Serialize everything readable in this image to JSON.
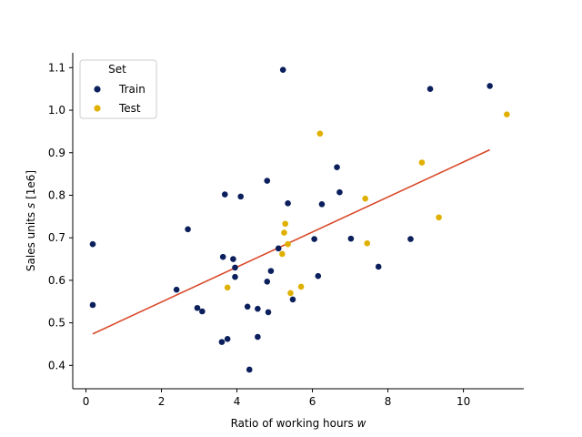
{
  "chart_data": {
    "type": "scatter",
    "xlabel": "Ratio of working hours w",
    "xlabel_parts": {
      "text": "Ratio of working hours ",
      "var": "w"
    },
    "ylabel": "Sales units s [1e6]",
    "ylabel_parts": {
      "pre": "Sales units ",
      "var": "s",
      "post": " [1e6]"
    },
    "xlim": [
      -0.35,
      11.6
    ],
    "ylim": [
      0.345,
      1.135
    ],
    "xticks": [
      0,
      2,
      4,
      6,
      8,
      10
    ],
    "xtick_labels": [
      "0",
      "2",
      "4",
      "6",
      "8",
      "10"
    ],
    "yticks": [
      0.4,
      0.5,
      0.6,
      0.7,
      0.8,
      0.9,
      1.0,
      1.1
    ],
    "ytick_labels": [
      "0.4",
      "0.5",
      "0.6",
      "0.7",
      "0.8",
      "0.9",
      "1.0",
      "1.1"
    ],
    "grid": false,
    "legend": {
      "title": "Set",
      "placement": "top-left"
    },
    "series": [
      {
        "name": "Train",
        "color": "#0b1f5c",
        "points": [
          [
            0.18,
            0.685
          ],
          [
            0.18,
            0.542
          ],
          [
            2.4,
            0.578
          ],
          [
            2.7,
            0.72
          ],
          [
            2.95,
            0.535
          ],
          [
            3.08,
            0.527
          ],
          [
            3.6,
            0.455
          ],
          [
            3.63,
            0.655
          ],
          [
            3.68,
            0.802
          ],
          [
            3.75,
            0.462
          ],
          [
            3.9,
            0.65
          ],
          [
            3.95,
            0.608
          ],
          [
            3.95,
            0.63
          ],
          [
            4.1,
            0.797
          ],
          [
            4.28,
            0.538
          ],
          [
            4.33,
            0.39
          ],
          [
            4.55,
            0.533
          ],
          [
            4.55,
            0.467
          ],
          [
            4.8,
            0.834
          ],
          [
            4.8,
            0.597
          ],
          [
            4.83,
            0.525
          ],
          [
            4.9,
            0.622
          ],
          [
            5.1,
            0.675
          ],
          [
            5.22,
            1.095
          ],
          [
            5.35,
            0.781
          ],
          [
            5.48,
            0.555
          ],
          [
            6.05,
            0.697
          ],
          [
            6.15,
            0.61
          ],
          [
            6.25,
            0.779
          ],
          [
            6.65,
            0.866
          ],
          [
            6.72,
            0.807
          ],
          [
            7.02,
            0.698
          ],
          [
            7.75,
            0.632
          ],
          [
            8.6,
            0.697
          ],
          [
            9.12,
            1.05
          ],
          [
            10.7,
            1.057
          ]
        ]
      },
      {
        "name": "Test",
        "color": "#e0b000",
        "points": [
          [
            3.75,
            0.583
          ],
          [
            5.2,
            0.662
          ],
          [
            5.25,
            0.712
          ],
          [
            5.28,
            0.733
          ],
          [
            5.35,
            0.685
          ],
          [
            5.42,
            0.57
          ],
          [
            5.7,
            0.585
          ],
          [
            6.2,
            0.945
          ],
          [
            7.4,
            0.792
          ],
          [
            7.45,
            0.687
          ],
          [
            8.9,
            0.877
          ],
          [
            9.35,
            0.748
          ],
          [
            11.15,
            0.99
          ]
        ]
      }
    ],
    "fit_line": {
      "color": "#d94a2b",
      "points": [
        [
          0.18,
          0.474
        ],
        [
          10.7,
          0.907
        ]
      ]
    }
  }
}
